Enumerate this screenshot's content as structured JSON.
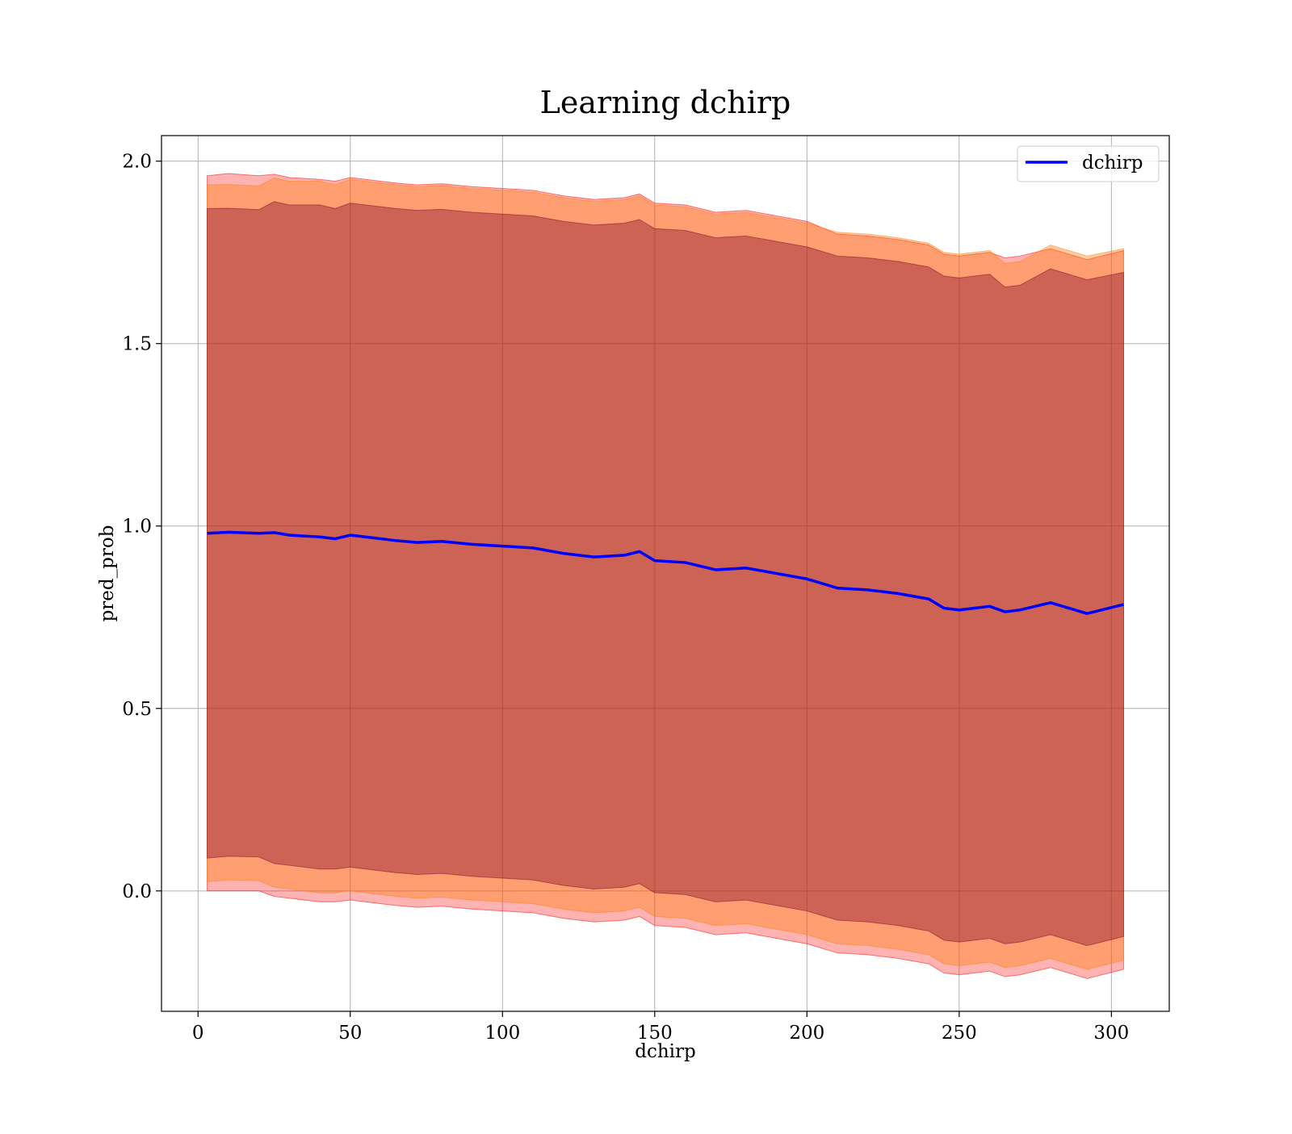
{
  "chart_data": {
    "type": "area",
    "title": "Learning dchirp",
    "xlabel": "dchirp",
    "ylabel": "pred_prob",
    "xlim": [
      -12,
      319
    ],
    "ylim": [
      -0.33,
      2.07
    ],
    "xticks": [
      0,
      50,
      100,
      150,
      200,
      250,
      300
    ],
    "yticks": [
      0.0,
      0.5,
      1.0,
      1.5,
      2.0
    ],
    "xtick_labels": [
      "0",
      "50",
      "100",
      "150",
      "200",
      "250",
      "300"
    ],
    "ytick_labels": [
      "0.0",
      "0.5",
      "1.0",
      "1.5",
      "2.0"
    ],
    "grid": true,
    "legend": {
      "position": "top-right",
      "entries": [
        "dchirp"
      ]
    },
    "colors": {
      "line": "#0000ff",
      "band_outer": "#ff0000",
      "band_middle": "#ff7f0e",
      "band_inner": "#7f0a2a"
    },
    "series": [
      {
        "name": "dchirp",
        "x": [
          3,
          10,
          20,
          25,
          30,
          40,
          45,
          50,
          60,
          65,
          72,
          80,
          90,
          100,
          110,
          120,
          125,
          130,
          140,
          145,
          150,
          160,
          170,
          180,
          190,
          200,
          210,
          220,
          230,
          240,
          245,
          250,
          255,
          260,
          265,
          270,
          280,
          292,
          304
        ],
        "y": [
          0.98,
          0.983,
          0.98,
          0.982,
          0.975,
          0.97,
          0.965,
          0.975,
          0.965,
          0.96,
          0.955,
          0.958,
          0.95,
          0.945,
          0.94,
          0.925,
          0.92,
          0.915,
          0.92,
          0.93,
          0.905,
          0.9,
          0.88,
          0.885,
          0.87,
          0.855,
          0.83,
          0.825,
          0.815,
          0.8,
          0.775,
          0.77,
          0.775,
          0.78,
          0.765,
          0.77,
          0.79,
          0.76,
          0.785
        ]
      }
    ],
    "bands": [
      {
        "label": "outer",
        "lower": [
          0.0,
          0.0,
          0.0,
          -0.015,
          -0.02,
          -0.03,
          -0.03,
          -0.025,
          -0.035,
          -0.04,
          -0.045,
          -0.042,
          -0.05,
          -0.055,
          -0.06,
          -0.075,
          -0.08,
          -0.085,
          -0.08,
          -0.07,
          -0.095,
          -0.1,
          -0.12,
          -0.115,
          -0.13,
          -0.145,
          -0.17,
          -0.175,
          -0.185,
          -0.2,
          -0.225,
          -0.23,
          -0.225,
          -0.22,
          -0.235,
          -0.23,
          -0.21,
          -0.24,
          -0.215
        ],
        "upper": [
          1.96,
          1.966,
          1.96,
          1.964,
          1.955,
          1.95,
          1.945,
          1.955,
          1.945,
          1.94,
          1.935,
          1.938,
          1.93,
          1.925,
          1.92,
          1.905,
          1.9,
          1.895,
          1.9,
          1.91,
          1.885,
          1.88,
          1.86,
          1.865,
          1.85,
          1.835,
          1.8,
          1.795,
          1.785,
          1.77,
          1.745,
          1.74,
          1.745,
          1.75,
          1.735,
          1.74,
          1.76,
          1.73,
          1.755
        ]
      },
      {
        "label": "middle",
        "lower": [
          0.025,
          0.03,
          0.028,
          0.01,
          0.005,
          -0.005,
          -0.005,
          0.0,
          -0.01,
          -0.015,
          -0.02,
          -0.017,
          -0.025,
          -0.03,
          -0.035,
          -0.05,
          -0.055,
          -0.06,
          -0.055,
          -0.045,
          -0.07,
          -0.075,
          -0.095,
          -0.09,
          -0.105,
          -0.12,
          -0.145,
          -0.15,
          -0.16,
          -0.175,
          -0.2,
          -0.205,
          -0.2,
          -0.195,
          -0.21,
          -0.205,
          -0.185,
          -0.215,
          -0.19
        ],
        "upper": [
          1.935,
          1.936,
          1.932,
          1.954,
          1.945,
          1.945,
          1.935,
          1.95,
          1.94,
          1.935,
          1.93,
          1.933,
          1.925,
          1.92,
          1.915,
          1.9,
          1.895,
          1.89,
          1.895,
          1.905,
          1.88,
          1.875,
          1.855,
          1.86,
          1.845,
          1.83,
          1.805,
          1.8,
          1.79,
          1.775,
          1.75,
          1.745,
          1.75,
          1.755,
          1.72,
          1.725,
          1.77,
          1.74,
          1.76
        ]
      },
      {
        "label": "inner",
        "lower": [
          0.09,
          0.095,
          0.093,
          0.075,
          0.07,
          0.06,
          0.06,
          0.065,
          0.055,
          0.05,
          0.045,
          0.048,
          0.04,
          0.035,
          0.03,
          0.015,
          0.01,
          0.005,
          0.01,
          0.02,
          -0.005,
          -0.01,
          -0.03,
          -0.025,
          -0.04,
          -0.055,
          -0.08,
          -0.085,
          -0.095,
          -0.11,
          -0.135,
          -0.14,
          -0.135,
          -0.13,
          -0.145,
          -0.14,
          -0.12,
          -0.15,
          -0.125
        ],
        "upper": [
          1.87,
          1.871,
          1.867,
          1.889,
          1.88,
          1.88,
          1.87,
          1.885,
          1.875,
          1.87,
          1.865,
          1.868,
          1.86,
          1.855,
          1.85,
          1.835,
          1.83,
          1.825,
          1.83,
          1.84,
          1.815,
          1.81,
          1.79,
          1.795,
          1.78,
          1.765,
          1.74,
          1.735,
          1.725,
          1.71,
          1.685,
          1.68,
          1.685,
          1.69,
          1.655,
          1.66,
          1.705,
          1.675,
          1.695
        ]
      }
    ]
  }
}
